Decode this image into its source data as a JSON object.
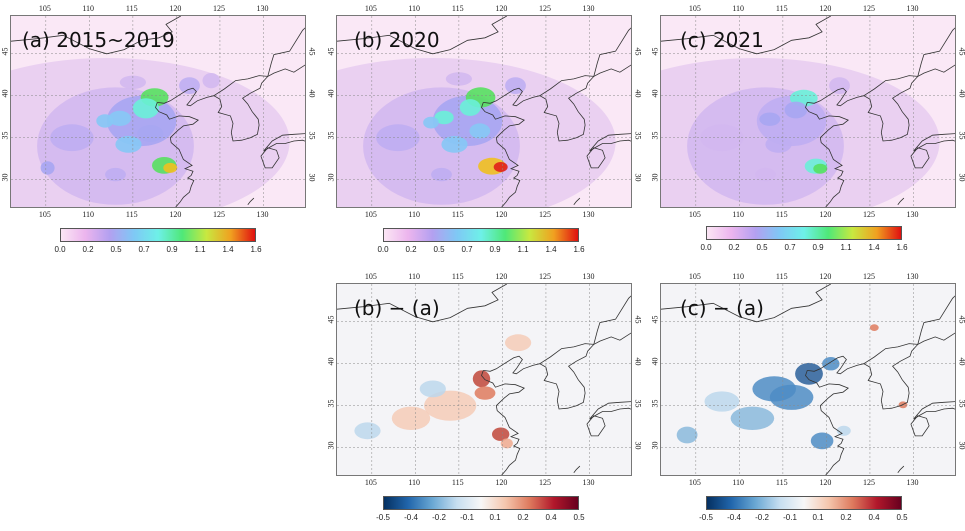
{
  "panels": [
    {
      "id": "a",
      "label": "(a) 2015~2019",
      "type": "abs"
    },
    {
      "id": "b",
      "label": "(b) 2020",
      "type": "abs"
    },
    {
      "id": "c",
      "label": "(c) 2021",
      "type": "abs"
    },
    {
      "id": "ba",
      "label": "(b) − (a)",
      "type": "diff"
    },
    {
      "id": "ca",
      "label": "(c) − (a)",
      "type": "diff"
    }
  ],
  "lon_ticks": [
    "105",
    "110",
    "115",
    "120",
    "125",
    "130"
  ],
  "lat_ticks": [
    "30",
    "35",
    "40",
    "45"
  ],
  "colorbar_abs": {
    "ticks": [
      "0.0",
      "0.2",
      "0.5",
      "0.7",
      "0.9",
      "1.1",
      "1.4",
      "1.6"
    ],
    "colors": [
      "#fbe6f4",
      "#ecb5ee",
      "#b3a0f0",
      "#7fc8f5",
      "#6ef0e8",
      "#4fe878",
      "#c8e840",
      "#f0a020",
      "#e01010"
    ]
  },
  "colorbar_diff": {
    "ticks": [
      "-0.5",
      "-0.4",
      "-0.2",
      "-0.1",
      "0.1",
      "0.2",
      "0.4",
      "0.5"
    ],
    "colors": [
      "#053061",
      "#2166ac",
      "#6aa8d4",
      "#c6def0",
      "#f7f7f7",
      "#f5c7ae",
      "#de7a5e",
      "#b2182b",
      "#67001f"
    ]
  }
}
